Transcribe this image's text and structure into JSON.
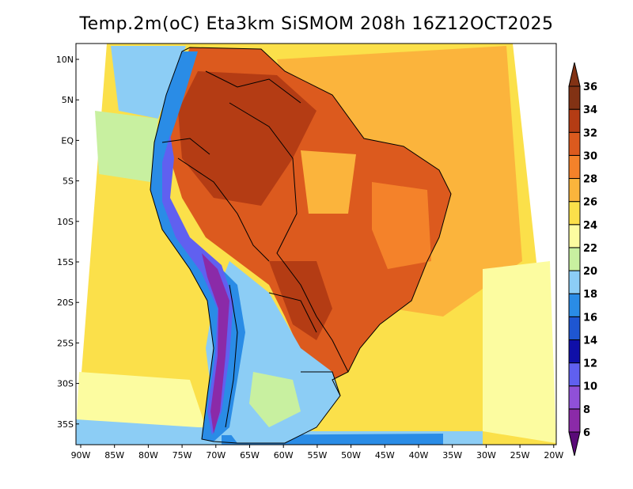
{
  "title": "Temp.2m(oC) Eta3km SiSMOM 208h 16Z12OCT2025",
  "lat_ticks": [
    "10N",
    "5N",
    "EQ",
    "5S",
    "10S",
    "15S",
    "20S",
    "25S",
    "30S",
    "35S"
  ],
  "lon_ticks": [
    "90W",
    "85W",
    "80W",
    "75W",
    "70W",
    "65W",
    "60W",
    "55W",
    "50W",
    "45W",
    "40W",
    "35W",
    "30W",
    "25W",
    "20W"
  ],
  "colorbar": {
    "labels": [
      "6",
      "8",
      "10",
      "12",
      "14",
      "16",
      "18",
      "20",
      "22",
      "24",
      "26",
      "28",
      "30",
      "32",
      "34",
      "36"
    ],
    "colors": [
      "#5a0a78",
      "#8b2aa8",
      "#9050d8",
      "#6060f0",
      "#0f0fa8",
      "#1e56d2",
      "#2a8ce6",
      "#8ccdf5",
      "#c8f0a0",
      "#fcfca0",
      "#fbe04a",
      "#fbb43c",
      "#f4822a",
      "#dc5a1e",
      "#b43c14",
      "#823214"
    ]
  },
  "map_colors": {
    "ocean_warm": "#fbe04a",
    "ocean_hot": "#fbb43c",
    "ocean_cool": "#fcfca0",
    "land_hot": "#dc5a1e",
    "land_hotter": "#b43c14",
    "land_warm": "#f4822a",
    "andes_cold": "#2a8ce6",
    "andes_colder": "#6060f0",
    "andes_coldest": "#8b2aa8",
    "south_cool": "#8ccdf5"
  }
}
